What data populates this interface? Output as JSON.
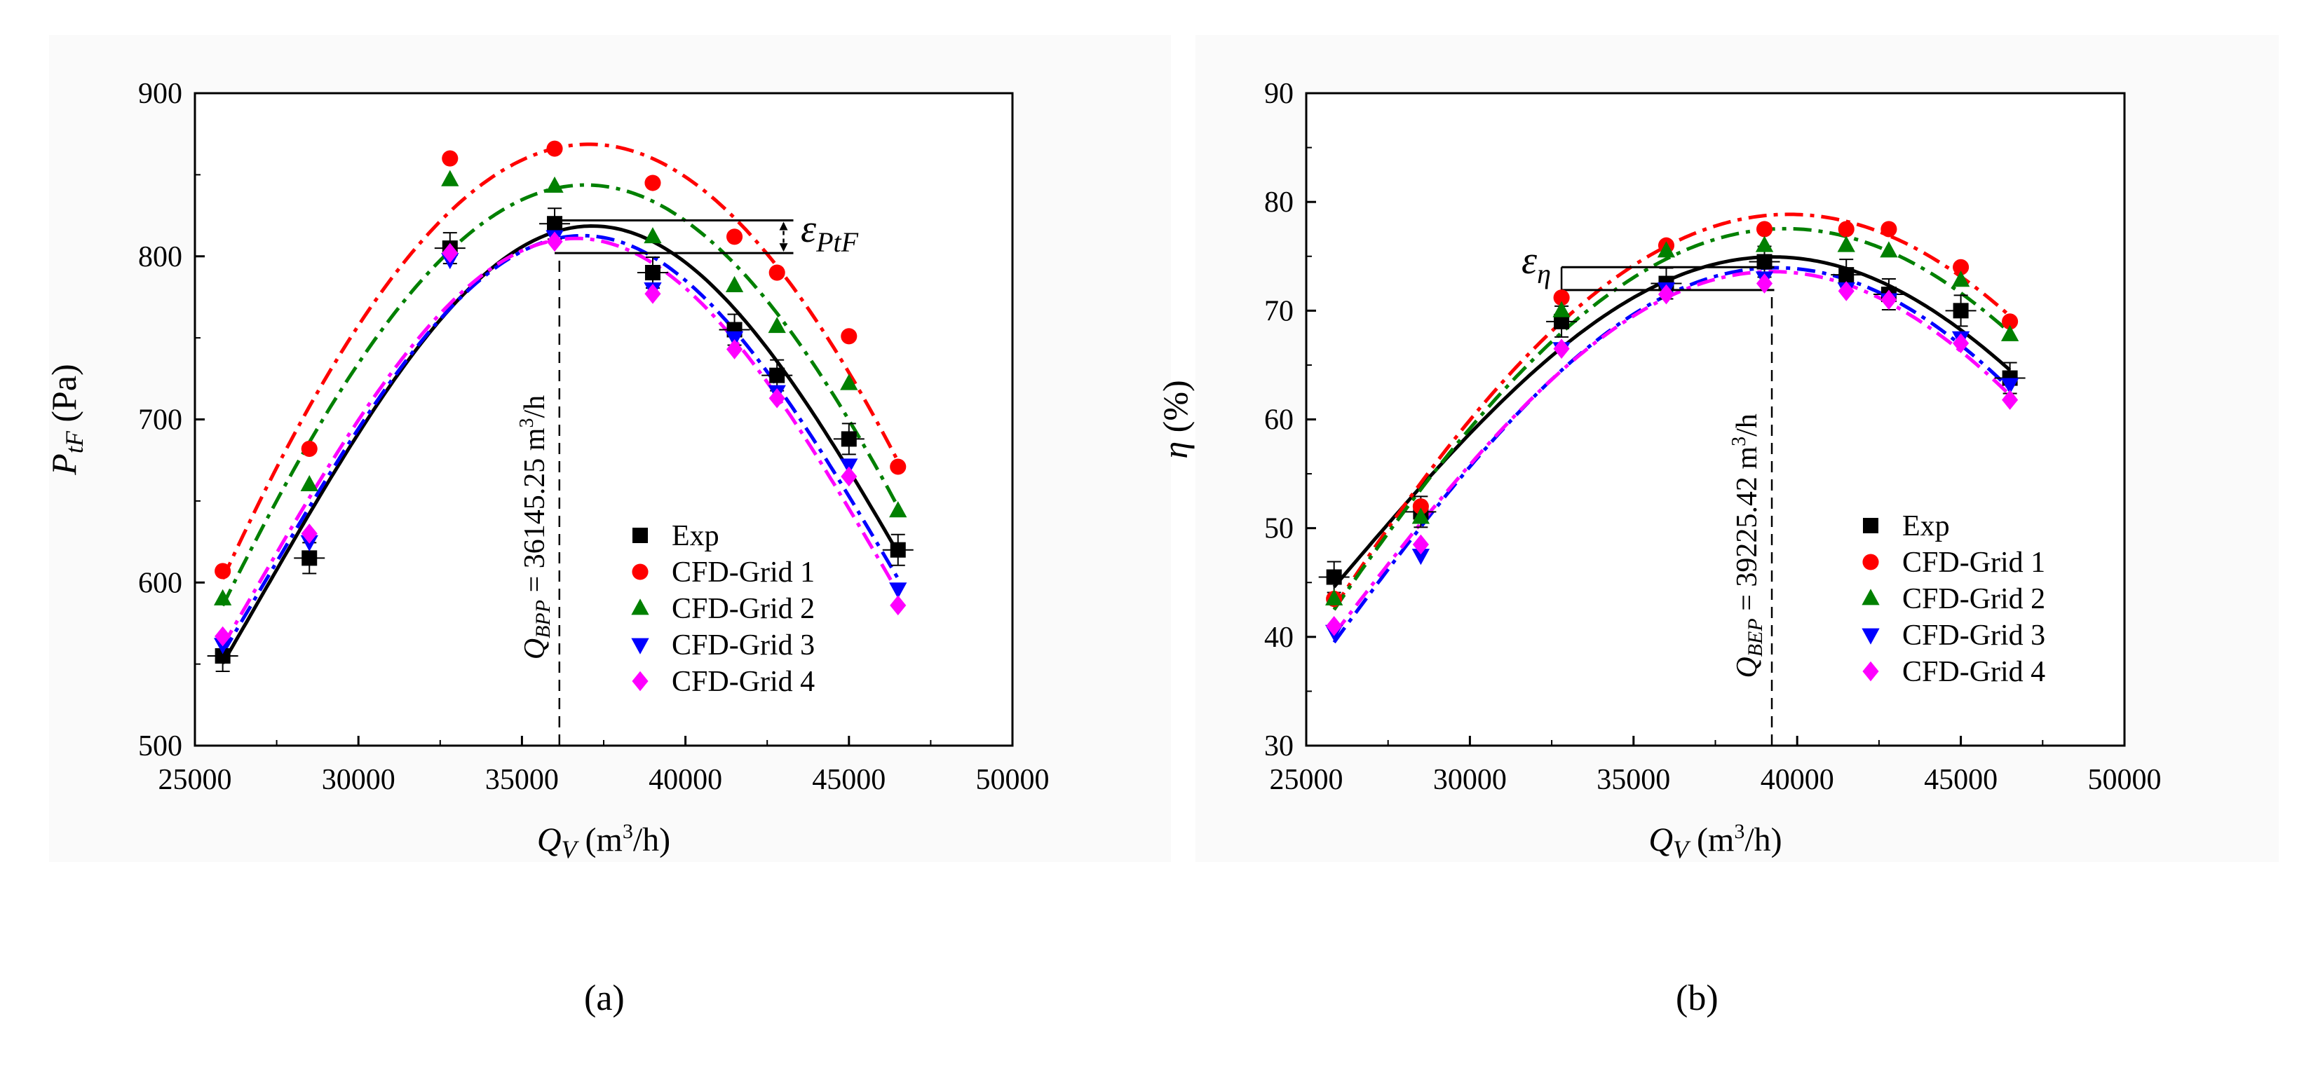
{
  "chart_data": [
    {
      "type": "scatter",
      "panel": "(a)",
      "xlabel_symbol": "Q",
      "xlabel_sub": "V",
      "xlabel_unit_pre": " (m",
      "xlabel_unit_sup": "3",
      "xlabel_unit_post": "/h)",
      "ylabel_symbol": "P",
      "ylabel_sub": "tF",
      "ylabel_unit": " (Pa)",
      "xlim": [
        25000,
        50000
      ],
      "ylim": [
        500,
        900
      ],
      "xticks": [
        25000,
        30000,
        35000,
        40000,
        45000,
        50000
      ],
      "yticks": [
        500,
        600,
        700,
        800,
        900
      ],
      "x": [
        25850,
        28500,
        32800,
        36000,
        39000,
        41500,
        42800,
        45000,
        46500
      ],
      "series": [
        {
          "name": "Exp",
          "color": "#000000",
          "marker": "square",
          "line": "solid",
          "values": [
            555,
            615,
            805,
            820,
            790,
            755,
            727,
            688,
            620
          ]
        },
        {
          "name": "CFD-Grid 1",
          "color": "#ff0000",
          "marker": "circle",
          "line": "dashdot",
          "values": [
            607,
            682,
            860,
            866,
            845,
            812,
            790,
            751,
            671
          ]
        },
        {
          "name": "CFD-Grid 2",
          "color": "#008000",
          "marker": "triangle-up",
          "line": "dashdot",
          "values": [
            590,
            660,
            847,
            843,
            812,
            782,
            757,
            722,
            644
          ]
        },
        {
          "name": "CFD-Grid 3",
          "color": "#0000ff",
          "marker": "triangle-down",
          "line": "dashdot",
          "values": [
            562,
            625,
            798,
            812,
            780,
            750,
            717,
            672,
            596
          ]
        },
        {
          "name": "CFD-Grid 4",
          "color": "#ff00ff",
          "marker": "diamond",
          "line": "dashdot",
          "values": [
            567,
            630,
            802,
            809,
            777,
            743,
            713,
            665,
            586
          ]
        }
      ],
      "bep_x": 36145.25,
      "bep_label_symbol": "Q",
      "bep_label_sub": "BPP",
      "bep_label_eq": " = 36145.25 m",
      "bep_label_sup": "3",
      "bep_label_post": "/h",
      "error_label_symbol": "ε",
      "error_label_sub": "PtF",
      "error_band": [
        802,
        822
      ]
    },
    {
      "type": "scatter",
      "panel": "(b)",
      "xlabel_symbol": "Q",
      "xlabel_sub": "V",
      "xlabel_unit_pre": " (m",
      "xlabel_unit_sup": "3",
      "xlabel_unit_post": "/h)",
      "ylabel_symbol": "η",
      "ylabel_sub": "",
      "ylabel_unit": " (%)",
      "xlim": [
        25000,
        50000
      ],
      "ylim": [
        30,
        90
      ],
      "xticks": [
        25000,
        30000,
        35000,
        40000,
        45000,
        50000
      ],
      "yticks": [
        30,
        40,
        50,
        60,
        70,
        80,
        90
      ],
      "x": [
        25850,
        28500,
        32800,
        36000,
        39000,
        41500,
        42800,
        45000,
        46500
      ],
      "series": [
        {
          "name": "Exp",
          "color": "#000000",
          "marker": "square",
          "line": "solid",
          "values": [
            45.5,
            51.5,
            69.0,
            72.5,
            74.5,
            73.3,
            71.5,
            70.0,
            63.8
          ]
        },
        {
          "name": "CFD-Grid 1",
          "color": "#ff0000",
          "marker": "circle",
          "line": "dashdot",
          "values": [
            43.5,
            52.0,
            71.2,
            76.0,
            77.5,
            77.5,
            77.5,
            74.0,
            69.0
          ]
        },
        {
          "name": "CFD-Grid 2",
          "color": "#008000",
          "marker": "triangle-up",
          "line": "dashdot",
          "values": [
            43.5,
            51.0,
            70.0,
            75.5,
            76.0,
            76.0,
            75.5,
            72.8,
            67.8
          ]
        },
        {
          "name": "CFD-Grid 3",
          "color": "#0000ff",
          "marker": "triangle-down",
          "line": "dashdot",
          "values": [
            40.5,
            47.5,
            66.5,
            72.0,
            73.0,
            72.0,
            71.0,
            67.5,
            63.2
          ]
        },
        {
          "name": "CFD-Grid 4",
          "color": "#ff00ff",
          "marker": "diamond",
          "line": "dashdot",
          "values": [
            41.0,
            48.5,
            66.5,
            71.5,
            72.5,
            71.8,
            71.0,
            67.0,
            61.8
          ]
        }
      ],
      "bep_x": 39225.42,
      "bep_label_symbol": "Q",
      "bep_label_sub": "BEP",
      "bep_label_eq": " = 39225.42 m",
      "bep_label_sup": "3",
      "bep_label_post": "/h",
      "error_label_symbol": "ε",
      "error_label_sub": "η",
      "error_band": [
        71.9,
        74.0
      ]
    }
  ],
  "panel_labels": {
    "a": "(a)",
    "b": "(b)"
  }
}
